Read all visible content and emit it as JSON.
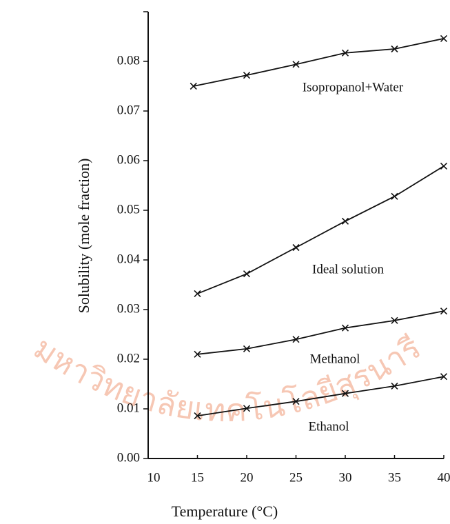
{
  "chart_data": {
    "type": "line",
    "x_label": "Temperature (°C)",
    "y_label": "Solubility (mole fraction)",
    "xlim": [
      10,
      40
    ],
    "xticks": [
      10,
      15,
      20,
      25,
      30,
      35,
      40
    ],
    "ylim": [
      0,
      0.09
    ],
    "yticks": [
      {
        "value": 0,
        "label": "0.00"
      },
      0.01,
      0.02,
      0.03,
      0.04,
      0.05,
      0.06,
      0.07,
      0.08
    ],
    "series": [
      {
        "name": "Isopropanol+Water",
        "color": "#111111",
        "x": [
          14.6,
          20,
          25,
          30,
          35,
          40
        ],
        "values": [
          0.075,
          0.0772,
          0.0794,
          0.0817,
          0.0825,
          0.0846
        ]
      },
      {
        "name": "Ideal solution",
        "color": "#111111",
        "x": [
          15,
          20,
          25,
          30,
          35,
          40
        ],
        "values": [
          0.0332,
          0.0372,
          0.0425,
          0.0478,
          0.0528,
          0.0589
        ]
      },
      {
        "name": "Methanol",
        "color": "#111111",
        "x": [
          15,
          20,
          25,
          30,
          35,
          40
        ],
        "values": [
          0.021,
          0.0221,
          0.024,
          0.0263,
          0.0278,
          0.0297
        ]
      },
      {
        "name": "Ethanol",
        "color": "#111111",
        "x": [
          15,
          20,
          25,
          30,
          35,
          40
        ],
        "values": [
          0.0086,
          0.0101,
          0.0115,
          0.0131,
          0.0146,
          0.0165
        ]
      }
    ]
  },
  "watermark": "มหาวิทยาลัยเทคโนโลยีสุรนารี"
}
